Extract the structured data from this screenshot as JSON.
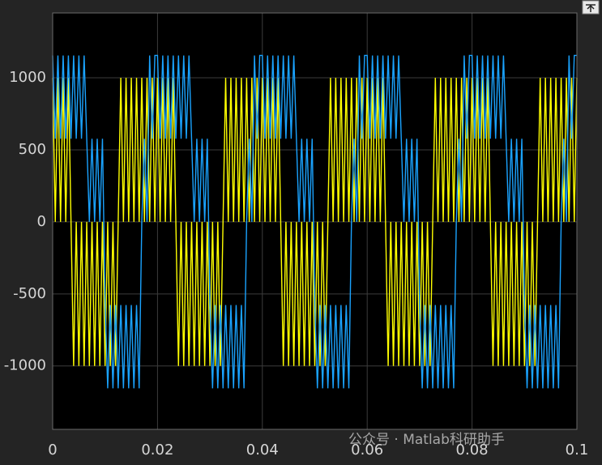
{
  "chart_data": {
    "type": "line",
    "annotations": [
      "公众号 · Matlab科研助手"
    ],
    "x": [
      0,
      0.0005,
      0.001,
      0.0015,
      0.002,
      0.0025,
      0.003,
      0.0035,
      0.004,
      0.0045,
      0.005,
      0.0055,
      0.006,
      0.0065,
      0.007,
      0.0075,
      0.008,
      0.0085,
      0.009,
      0.0095,
      0.01,
      0.0105,
      0.011,
      0.0115,
      0.012,
      0.0125,
      0.013,
      0.0135,
      0.014,
      0.0145,
      0.015,
      0.0155,
      0.016,
      0.0165,
      0.017,
      0.0175,
      0.018,
      0.0185,
      0.019,
      0.0195,
      0.02,
      0.0205,
      0.021,
      0.0215,
      0.022,
      0.0225,
      0.023,
      0.0235,
      0.024,
      0.0245,
      0.025,
      0.0255,
      0.026,
      0.0265,
      0.027,
      0.0275,
      0.028,
      0.0285,
      0.029,
      0.0295,
      0.03,
      0.0305,
      0.031,
      0.0315,
      0.032,
      0.0325,
      0.033,
      0.0335,
      0.034,
      0.0345,
      0.035,
      0.0355,
      0.036,
      0.0365,
      0.037,
      0.0375,
      0.038,
      0.0385,
      0.039,
      0.0395,
      0.04,
      0.0405,
      0.041,
      0.0415,
      0.042,
      0.0425,
      0.043,
      0.0435,
      0.044,
      0.0445,
      0.045,
      0.0455,
      0.046,
      0.0465,
      0.047,
      0.0475,
      0.048,
      0.0485,
      0.049,
      0.0495,
      0.05,
      0.0505,
      0.051,
      0.0515,
      0.052,
      0.0525,
      0.053,
      0.0535,
      0.054,
      0.0545,
      0.055,
      0.0555,
      0.056,
      0.0565,
      0.057,
      0.0575,
      0.058,
      0.0585,
      0.059,
      0.0595,
      0.06,
      0.0605,
      0.061,
      0.0615,
      0.062,
      0.0625,
      0.063,
      0.0635,
      0.064,
      0.0645,
      0.065,
      0.0655,
      0.066,
      0.0665,
      0.067,
      0.0675,
      0.068,
      0.0685,
      0.069,
      0.0695,
      0.07,
      0.0705,
      0.071,
      0.0715,
      0.072,
      0.0725,
      0.073,
      0.0735,
      0.074,
      0.0745,
      0.075,
      0.0755,
      0.076,
      0.0765,
      0.077,
      0.0775,
      0.078,
      0.0785,
      0.079,
      0.0795,
      0.08,
      0.0805,
      0.081,
      0.0815,
      0.082,
      0.0825,
      0.083,
      0.0835,
      0.084,
      0.0845,
      0.085,
      0.0855,
      0.086,
      0.0865,
      0.087,
      0.0875,
      0.088,
      0.0885,
      0.089,
      0.0895,
      0.09,
      0.0905,
      0.091,
      0.0915,
      0.092,
      0.0925,
      0.093,
      0.0935,
      0.094,
      0.0945,
      0.095,
      0.0955,
      0.096,
      0.0965,
      0.097,
      0.0975,
      0.098,
      0.0985,
      0.099,
      0.0995,
      0.1
    ],
    "series": [
      {
        "color": "#ffff00",
        "values": [
          1000,
          0,
          1000,
          0,
          1000,
          0,
          1000,
          0,
          -1000,
          0,
          -1000,
          0,
          -1000,
          0,
          -1000,
          0,
          -1000,
          0,
          -1000,
          0,
          -1000,
          0,
          -1000,
          0,
          -1000,
          0,
          1000,
          0,
          1000,
          0,
          1000,
          0,
          1000,
          0,
          1000,
          0,
          1000,
          0,
          1000,
          0,
          1000,
          0,
          1000,
          0,
          1000,
          0,
          1000,
          0,
          -1000,
          0,
          -1000,
          0,
          -1000,
          0,
          -1000,
          0,
          -1000,
          0,
          -1000,
          0,
          -1000,
          0,
          -1000,
          0,
          -1000,
          0,
          1000,
          0,
          1000,
          0,
          1000,
          0,
          1000,
          0,
          1000,
          0,
          1000,
          0,
          1000,
          0,
          1000,
          0,
          1000,
          0,
          1000,
          0,
          1000,
          0,
          -1000,
          0,
          -1000,
          0,
          -1000,
          0,
          -1000,
          0,
          -1000,
          0,
          -1000,
          0,
          -1000,
          0,
          -1000,
          0,
          -1000,
          0,
          1000,
          0,
          1000,
          0,
          1000,
          0,
          1000,
          0,
          1000,
          0,
          1000,
          0,
          1000,
          0,
          1000,
          0,
          1000,
          0,
          1000,
          0,
          1000,
          0,
          -1000,
          0,
          -1000,
          0,
          -1000,
          0,
          -1000,
          0,
          -1000,
          0,
          -1000,
          0,
          -1000,
          0,
          -1000,
          0,
          -1000,
          0,
          1000,
          0,
          1000,
          0,
          1000,
          0,
          1000,
          0,
          1000,
          0,
          1000,
          0,
          1000,
          0,
          1000,
          0,
          1000,
          0,
          1000,
          0,
          1000,
          0,
          -1000,
          0,
          -1000,
          0,
          -1000,
          0,
          -1000,
          0,
          -1000,
          0,
          -1000,
          0,
          -1000,
          0,
          -1000,
          0,
          -1000,
          0,
          1000,
          0,
          1000,
          0,
          1000,
          0,
          1000,
          0,
          1000,
          0,
          1000,
          0,
          1000,
          0,
          1000
        ]
      },
      {
        "color": "#1aa3ff",
        "values": [
          1155,
          577,
          1155,
          577,
          1155,
          577,
          1155,
          577,
          1155,
          577,
          1155,
          577,
          1155,
          577,
          0,
          577,
          0,
          577,
          0,
          577,
          -577,
          -1155,
          -577,
          -1155,
          -577,
          -1155,
          -577,
          -1155,
          -577,
          -1155,
          -577,
          -1155,
          -577,
          -1155,
          0,
          577,
          0,
          1155,
          577,
          1155,
          1155,
          577,
          1155,
          577,
          1155,
          577,
          1155,
          577,
          1155,
          577,
          1155,
          577,
          1155,
          577,
          0,
          577,
          0,
          577,
          0,
          577,
          -577,
          -1155,
          -577,
          -1155,
          -577,
          -1155,
          -577,
          -1155,
          -577,
          -1155,
          -577,
          -1155,
          -577,
          -1155,
          0,
          577,
          0,
          1155,
          577,
          1155,
          1155,
          577,
          1155,
          577,
          1155,
          577,
          1155,
          577,
          1155,
          577,
          1155,
          577,
          1155,
          577,
          0,
          577,
          0,
          577,
          0,
          577,
          -577,
          -1155,
          -577,
          -1155,
          -577,
          -1155,
          -577,
          -1155,
          -577,
          -1155,
          -577,
          -1155,
          -577,
          -1155,
          0,
          577,
          0,
          1155,
          577,
          1155,
          1155,
          577,
          1155,
          577,
          1155,
          577,
          1155,
          577,
          1155,
          577,
          1155,
          577,
          1155,
          577,
          0,
          577,
          0,
          577,
          0,
          577,
          -577,
          -1155,
          -577,
          -1155,
          -577,
          -1155,
          -577,
          -1155,
          -577,
          -1155,
          -577,
          -1155,
          -577,
          -1155,
          0,
          577,
          0,
          1155,
          577,
          1155,
          1155,
          577,
          1155,
          577,
          1155,
          577,
          1155,
          577,
          1155,
          577,
          1155,
          577,
          1155,
          577,
          0,
          577,
          0,
          577,
          0,
          577,
          -577,
          -1155,
          -577,
          -1155,
          -577,
          -1155,
          -577,
          -1155,
          -577,
          -1155,
          -577,
          -1155,
          -577,
          -1155,
          0,
          577,
          0,
          1155,
          577,
          1155,
          1155
        ]
      }
    ],
    "xlim": [
      0,
      0.1
    ],
    "xticks": [
      0,
      0.02,
      0.04,
      0.06,
      0.08,
      0.1
    ],
    "ylim": [
      -1440,
      1450
    ],
    "yticks": [
      -1000,
      -500,
      0,
      500,
      1000
    ],
    "grid": true
  }
}
